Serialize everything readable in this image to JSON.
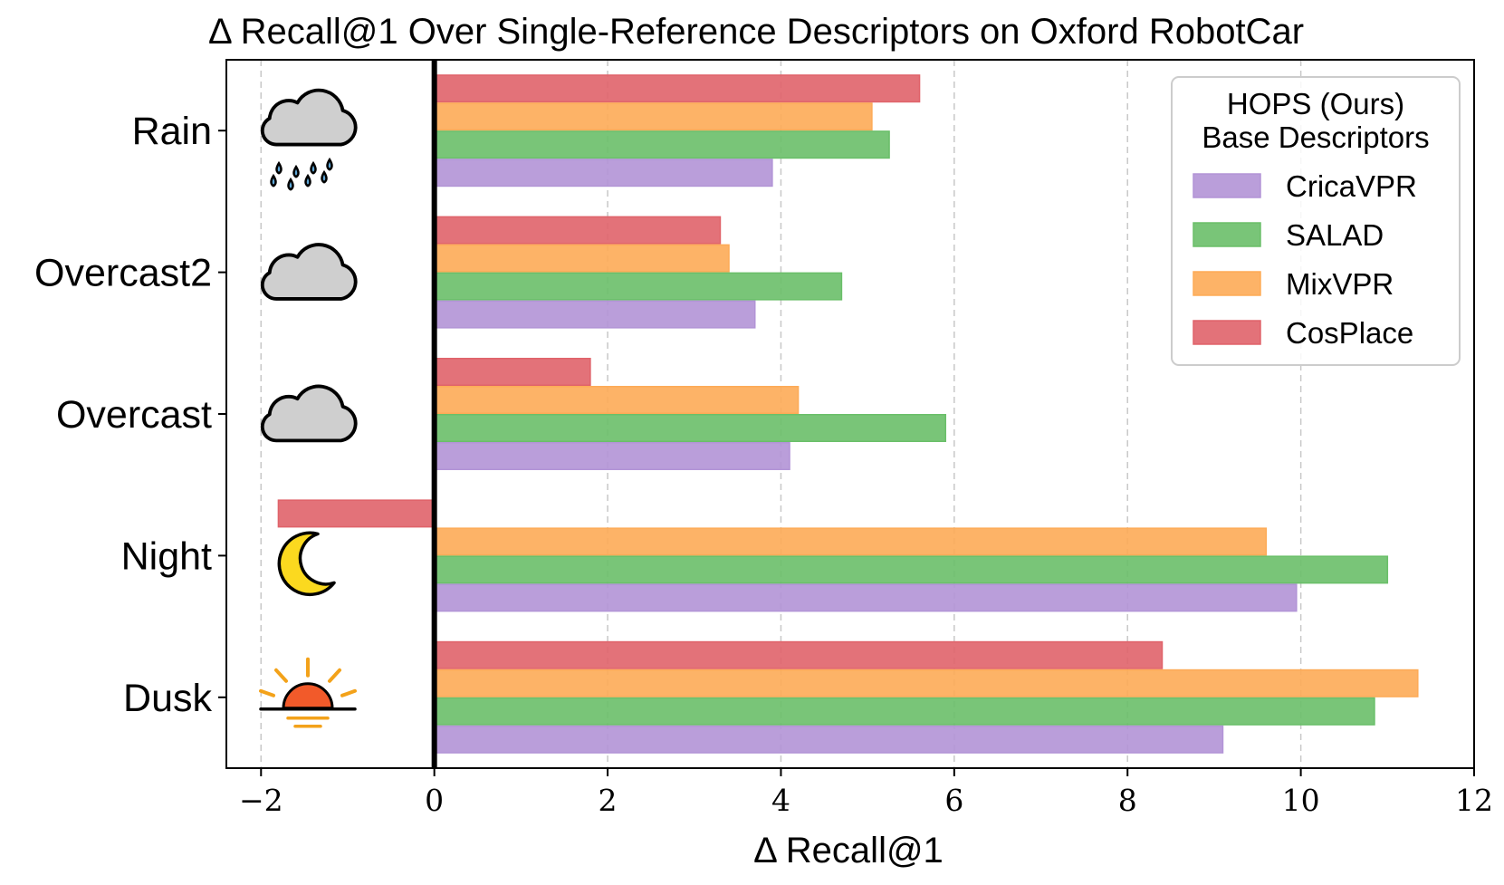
{
  "colors": {
    "CricaVPR": "#b294d6",
    "SALAD": "#6abf69",
    "MixVPR": "#fdab57",
    "CosPlace": "#e0636a"
  },
  "chart_data": {
    "type": "bar",
    "orientation": "horizontal",
    "title": "Δ Recall@1 Over Single-Reference Descriptors on Oxford RobotCar",
    "xlabel": "Δ Recall@1",
    "ylabel": "",
    "xlim": [
      -2.4,
      12
    ],
    "xticks": [
      -2,
      0,
      2,
      4,
      6,
      8,
      10,
      12
    ],
    "xtick_labels": [
      "−2",
      "0",
      "2",
      "4",
      "6",
      "8",
      "10",
      "12"
    ],
    "grid": "vertical dashed",
    "categories": [
      "Rain",
      "Overcast2",
      "Overcast",
      "Night",
      "Dusk"
    ],
    "category_icons": [
      "rain-cloud-icon",
      "cloud-icon",
      "cloud-icon",
      "moon-icon",
      "sunset-icon"
    ],
    "legend": {
      "title_line1": "HOPS (Ours)",
      "title_line2": "Base Descriptors",
      "placement": "top-right"
    },
    "series": [
      {
        "name": "CricaVPR",
        "values": [
          3.9,
          3.7,
          4.1,
          9.95,
          9.1
        ]
      },
      {
        "name": "SALAD",
        "values": [
          5.25,
          4.7,
          5.9,
          11.0,
          10.85
        ]
      },
      {
        "name": "MixVPR",
        "values": [
          5.05,
          3.4,
          4.2,
          9.6,
          11.35
        ]
      },
      {
        "name": "CosPlace",
        "values": [
          5.6,
          3.3,
          1.8,
          -1.8,
          8.4
        ]
      }
    ]
  }
}
